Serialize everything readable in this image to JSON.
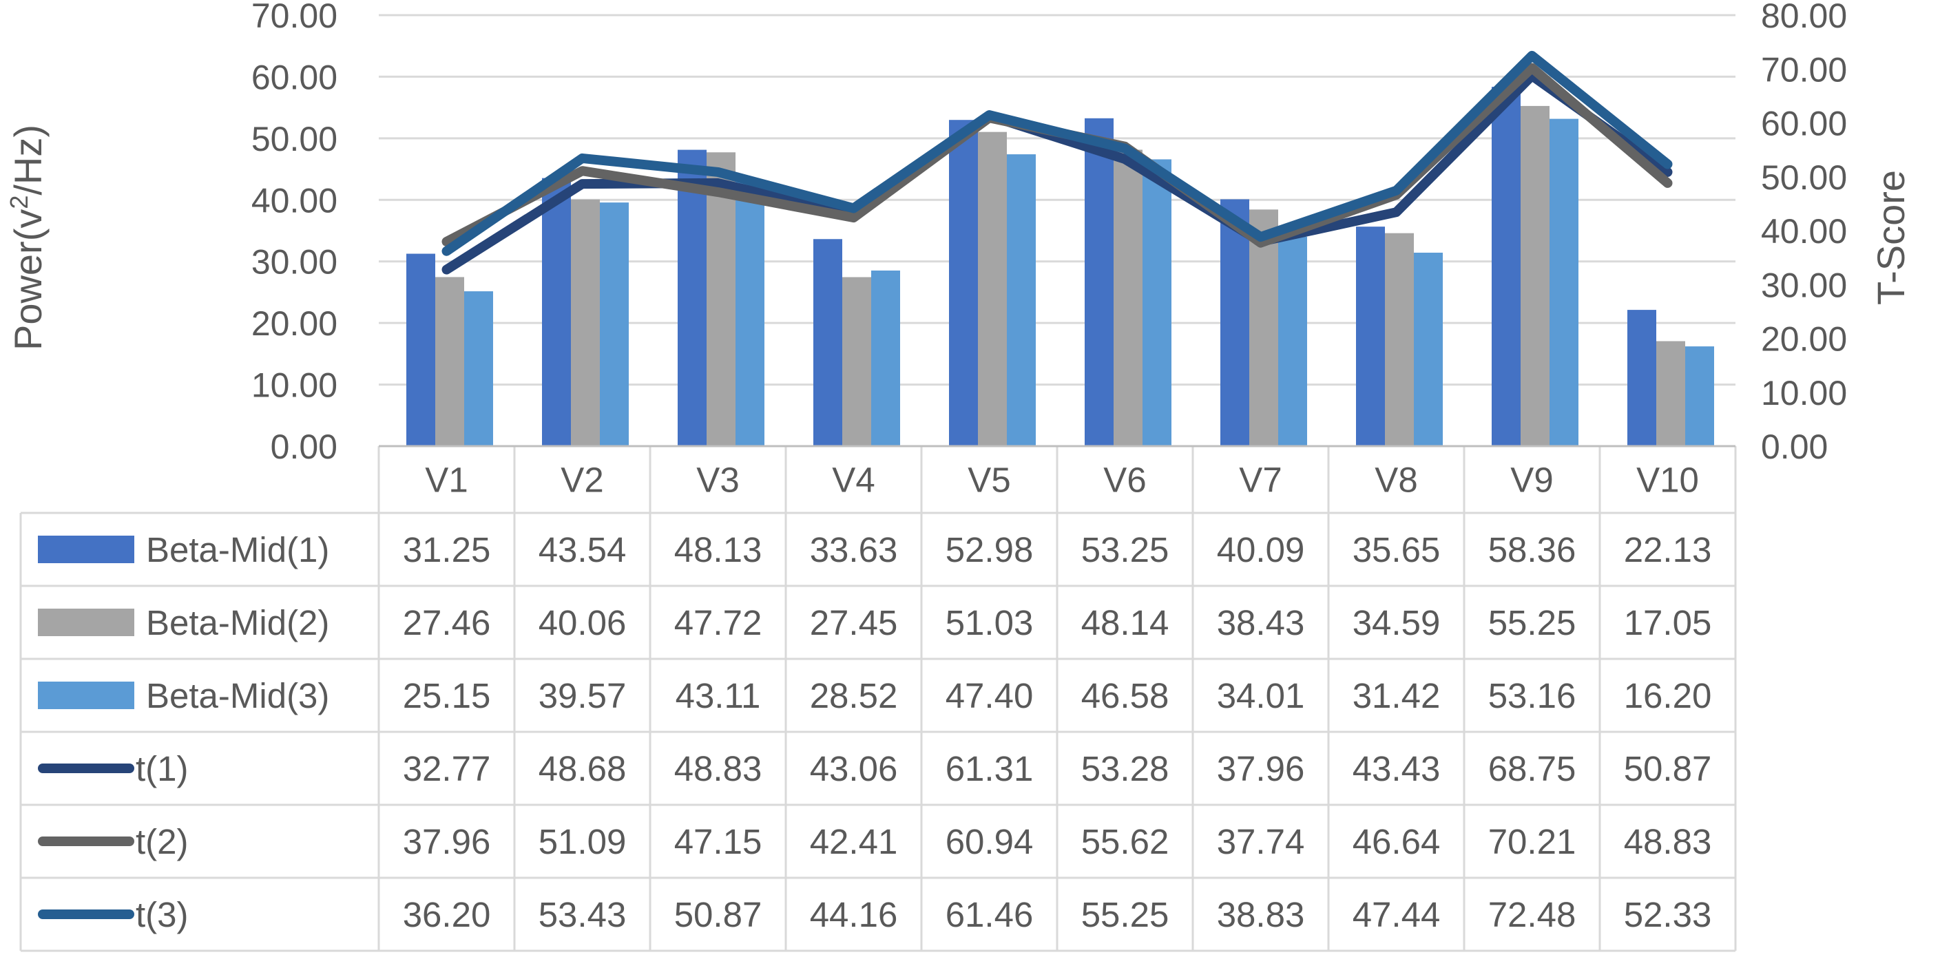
{
  "chart_data": {
    "type": "bar",
    "title": "",
    "categories": [
      "V1",
      "V2",
      "V3",
      "V4",
      "V5",
      "V6",
      "V7",
      "V8",
      "V9",
      "V10"
    ],
    "y_left": {
      "label": "Power(v²/Hz)",
      "label_main": "Power(v",
      "label_sup": "2",
      "label_tail": "/Hz)",
      "ylim": [
        0,
        70
      ],
      "ticks": [
        "0.00",
        "10.00",
        "20.00",
        "30.00",
        "40.00",
        "50.00",
        "60.00",
        "70.00"
      ]
    },
    "y_right": {
      "label": "T-Score",
      "ylim": [
        0,
        80
      ],
      "ticks": [
        "0.00",
        "10.00",
        "20.00",
        "30.00",
        "40.00",
        "50.00",
        "60.00",
        "70.00",
        "80.00"
      ]
    },
    "grid": true,
    "legend": "data-table",
    "series": [
      {
        "name": "Beta-Mid(1)",
        "kind": "bar",
        "axis": "left",
        "color": "#4472C4",
        "values": [
          31.25,
          43.54,
          48.13,
          33.63,
          52.98,
          53.25,
          40.09,
          35.65,
          58.36,
          22.13
        ],
        "labels": [
          "31.25",
          "43.54",
          "48.13",
          "33.63",
          "52.98",
          "53.25",
          "40.09",
          "35.65",
          "58.36",
          "22.13"
        ]
      },
      {
        "name": "Beta-Mid(2)",
        "kind": "bar",
        "axis": "left",
        "color": "#A5A5A5",
        "values": [
          27.46,
          40.06,
          47.72,
          27.45,
          51.03,
          48.14,
          38.43,
          34.59,
          55.25,
          17.05
        ],
        "labels": [
          "27.46",
          "40.06",
          "47.72",
          "27.45",
          "51.03",
          "48.14",
          "38.43",
          "34.59",
          "55.25",
          "17.05"
        ]
      },
      {
        "name": "Beta-Mid(3)",
        "kind": "bar",
        "axis": "left",
        "color": "#5B9BD5",
        "values": [
          25.15,
          39.57,
          43.11,
          28.52,
          47.4,
          46.58,
          34.01,
          31.42,
          53.16,
          16.2
        ],
        "labels": [
          "25.15",
          "39.57",
          "43.11",
          "28.52",
          "47.40",
          "46.58",
          "34.01",
          "31.42",
          "53.16",
          "16.20"
        ]
      },
      {
        "name": "t(1)",
        "kind": "line",
        "axis": "right",
        "color": "#264478",
        "values": [
          32.77,
          48.68,
          48.83,
          43.06,
          61.31,
          53.28,
          37.96,
          43.43,
          68.75,
          50.87
        ],
        "labels": [
          "32.77",
          "48.68",
          "48.83",
          "43.06",
          "61.31",
          "53.28",
          "37.96",
          "43.43",
          "68.75",
          "50.87"
        ]
      },
      {
        "name": "t(2)",
        "kind": "line",
        "axis": "right",
        "color": "#636363",
        "values": [
          37.96,
          51.09,
          47.15,
          42.41,
          60.94,
          55.62,
          37.74,
          46.64,
          70.21,
          48.83
        ],
        "labels": [
          "37.96",
          "51.09",
          "47.15",
          "42.41",
          "60.94",
          "55.62",
          "37.74",
          "46.64",
          "70.21",
          "48.83"
        ]
      },
      {
        "name": "t(3)",
        "kind": "line",
        "axis": "right",
        "color": "#255E91",
        "values": [
          36.2,
          53.43,
          50.87,
          44.16,
          61.46,
          55.25,
          38.83,
          47.44,
          72.48,
          52.33
        ],
        "labels": [
          "36.20",
          "53.43",
          "50.87",
          "44.16",
          "61.46",
          "55.25",
          "38.83",
          "47.44",
          "72.48",
          "52.33"
        ]
      }
    ]
  }
}
